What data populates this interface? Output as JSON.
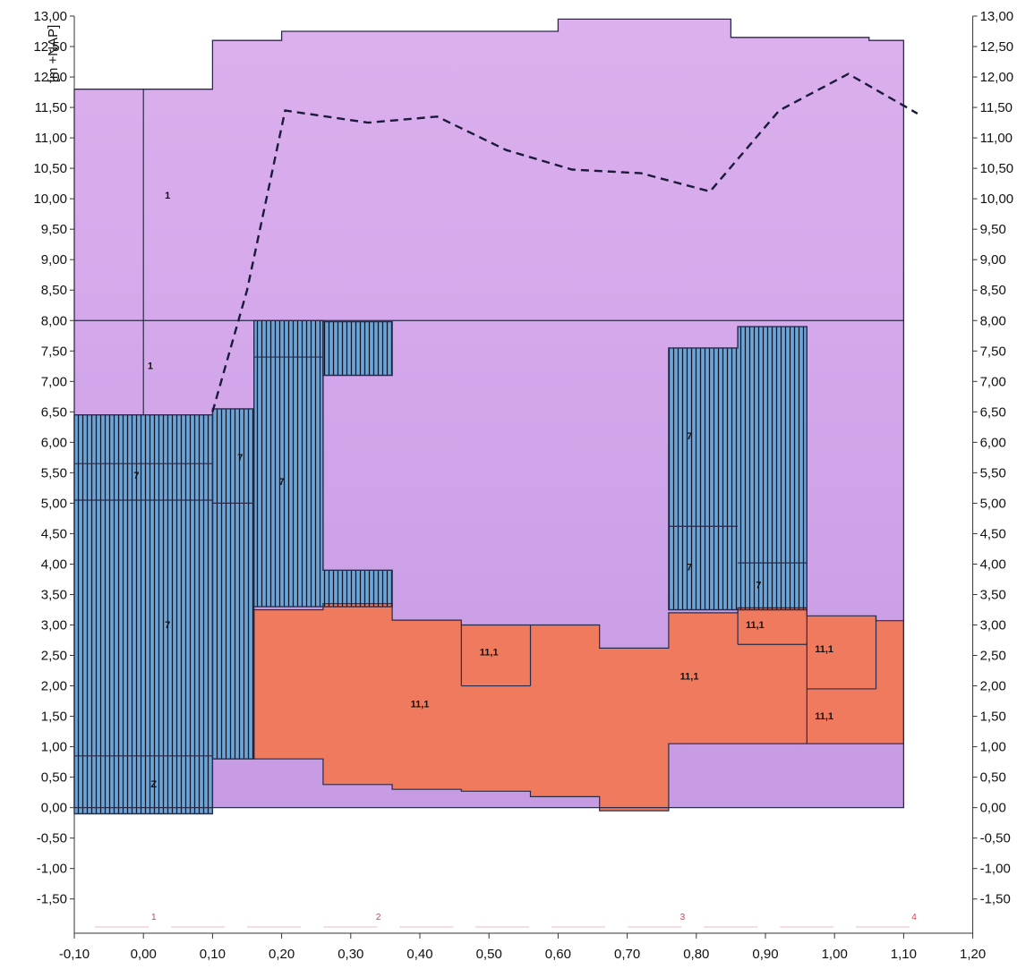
{
  "chart_data": {
    "type": "area",
    "ylabel": "[m +NAP]",
    "xlim": [
      -0.1,
      1.2
    ],
    "ylim": [
      -2.0,
      13.0
    ],
    "x_ticks": [
      "-0,10",
      "0,00",
      "0,10",
      "0,20",
      "0,30",
      "0,40",
      "0,50",
      "0,60",
      "0,70",
      "0,80",
      "0,90",
      "1,00",
      "1,10",
      "1,20"
    ],
    "x_tick_values": [
      -0.1,
      0.0,
      0.1,
      0.2,
      0.3,
      0.4,
      0.5,
      0.6,
      0.7,
      0.8,
      0.9,
      1.0,
      1.1,
      1.2
    ],
    "y_ticks_left": [
      "13,00",
      "12,50",
      "12,00",
      "11,50",
      "11,00",
      "10,50",
      "10,00",
      "9,50",
      "9,00",
      "8,50",
      "8,00",
      "7,50",
      "7,00",
      "6,50",
      "6,00",
      "5,50",
      "5,00",
      "4,50",
      "4,00",
      "3,50",
      "3,00",
      "2,50",
      "2,00",
      "1,50",
      "1,00",
      "0,50",
      "0,00",
      "-0,50",
      "-1,00",
      "-1,50"
    ],
    "y_ticks_right": [
      "13,00",
      "12,50",
      "12,00",
      "11,50",
      "11,00",
      "10,50",
      "10,00",
      "9,50",
      "9,00",
      "8,50",
      "8,00",
      "7,50",
      "7,00",
      "6,50",
      "6,00",
      "5,50",
      "5,00",
      "4,50",
      "4,00",
      "3,50",
      "3,00",
      "2,50",
      "2,00",
      "1,50",
      "1,00",
      "0,50",
      "0,00",
      "-0,50",
      "-1,00",
      "-1,50"
    ],
    "y_tick_values": [
      13,
      12.5,
      12,
      11.5,
      11,
      10.5,
      10,
      9.5,
      9,
      8.5,
      8,
      7.5,
      7,
      6.5,
      6,
      5.5,
      5,
      4.5,
      4,
      3.5,
      3,
      2.5,
      2,
      1.5,
      1,
      0.5,
      0,
      -0.5,
      -1,
      -1.5
    ],
    "colors": {
      "zone_1": "#d6a6ea",
      "zone_7": "#6fa5d6",
      "zone_11_1": "#f07a5e",
      "outline": "#2a2a4a",
      "dashed_line": "#1a1a3a",
      "location_marks": "#d04050"
    },
    "surface_profile": {
      "x": [
        -0.1,
        -0.1,
        0.1,
        0.1,
        0.2,
        0.2,
        0.35,
        0.35,
        0.6,
        0.6,
        0.85,
        0.85,
        1.05,
        1.05,
        1.1,
        1.1
      ],
      "y": [
        0,
        11.8,
        11.8,
        12.6,
        12.6,
        12.75,
        12.75,
        12.75,
        12.75,
        12.95,
        12.95,
        12.65,
        12.65,
        12.6,
        12.6,
        0
      ]
    },
    "layer_boundary": {
      "x": [
        -0.1,
        1.1
      ],
      "y": [
        8.0,
        8.0
      ]
    },
    "dashed_series": {
      "x": [
        0.1,
        0.15,
        0.205,
        0.325,
        0.425,
        0.525,
        0.62,
        0.72,
        0.82,
        0.92,
        1.02,
        1.12
      ],
      "y": [
        6.5,
        8.5,
        11.45,
        11.25,
        11.35,
        10.8,
        10.48,
        10.42,
        10.12,
        11.45,
        12.05,
        11.4
      ]
    },
    "zones": [
      {
        "label": "1",
        "type": "zone_1",
        "x": 0.035,
        "y": 10.0
      },
      {
        "label": "1",
        "type": "zone_1",
        "x": 0.01,
        "y": 7.2
      },
      {
        "label": "7",
        "type": "zone_7",
        "x": -0.01,
        "y": 5.4
      },
      {
        "label": "7",
        "type": "zone_7",
        "x": 0.035,
        "y": 2.95
      },
      {
        "label": "Z",
        "type": "zone_7",
        "x": 0.015,
        "y": 0.33
      },
      {
        "label": "7",
        "type": "zone_7",
        "x": 0.14,
        "y": 5.7
      },
      {
        "label": "7",
        "type": "zone_7",
        "x": 0.2,
        "y": 5.3
      },
      {
        "label": "11,1",
        "type": "zone_11_1",
        "x": 0.4,
        "y": 1.65
      },
      {
        "label": "11,1",
        "type": "zone_11_1",
        "x": 0.5,
        "y": 2.5
      },
      {
        "label": "7",
        "type": "zone_7",
        "x": 0.79,
        "y": 6.05
      },
      {
        "label": "7",
        "type": "zone_7",
        "x": 0.79,
        "y": 3.9
      },
      {
        "label": "7",
        "type": "zone_7",
        "x": 0.89,
        "y": 3.6
      },
      {
        "label": "11,1",
        "type": "zone_11_1",
        "x": 0.79,
        "y": 2.1
      },
      {
        "label": "11,1",
        "type": "zone_11_1",
        "x": 0.885,
        "y": 2.95
      },
      {
        "label": "11,1",
        "type": "zone_11_1",
        "x": 0.985,
        "y": 2.55
      },
      {
        "label": "11,1",
        "type": "zone_11_1",
        "x": 0.985,
        "y": 1.45
      }
    ],
    "location_marks": [
      {
        "label": "1",
        "x": 0.015
      },
      {
        "label": "2",
        "x": 0.34
      },
      {
        "label": "3",
        "x": 0.78
      },
      {
        "label": "4",
        "x": 1.115
      }
    ],
    "grid": false
  }
}
